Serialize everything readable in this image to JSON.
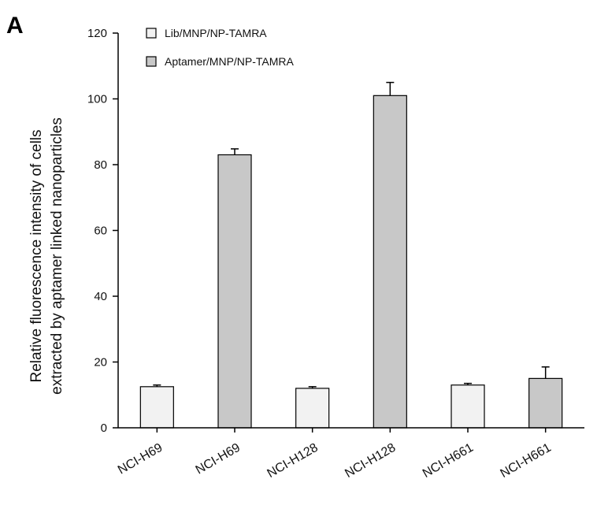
{
  "panel_label": "A",
  "chart_data": {
    "type": "bar",
    "title": "",
    "ylabel_lines": [
      "Relative fluorescence intensity of cells",
      "extracted by aptamer linked nanoparticles"
    ],
    "xlabel": "",
    "ylim": [
      0,
      120
    ],
    "yticks": [
      0,
      20,
      40,
      60,
      80,
      100,
      120
    ],
    "legend_position": "top-left",
    "categories": [
      "NCI-H69",
      "NCI-H69",
      "NCI-H128",
      "NCI-H128",
      "NCI-H661",
      "NCI-H661"
    ],
    "values": [
      12.5,
      83,
      12,
      101,
      13,
      15
    ],
    "errors": [
      0.5,
      1.8,
      0.5,
      4,
      0.5,
      3.5
    ],
    "series_index": [
      0,
      1,
      0,
      1,
      0,
      1
    ],
    "series": [
      {
        "name": "Lib/MNP/NP-TAMRA",
        "color": "#f2f2f2"
      },
      {
        "name": "Aptamer/MNP/NP-TAMRA",
        "color": "#c8c8c8"
      }
    ]
  }
}
